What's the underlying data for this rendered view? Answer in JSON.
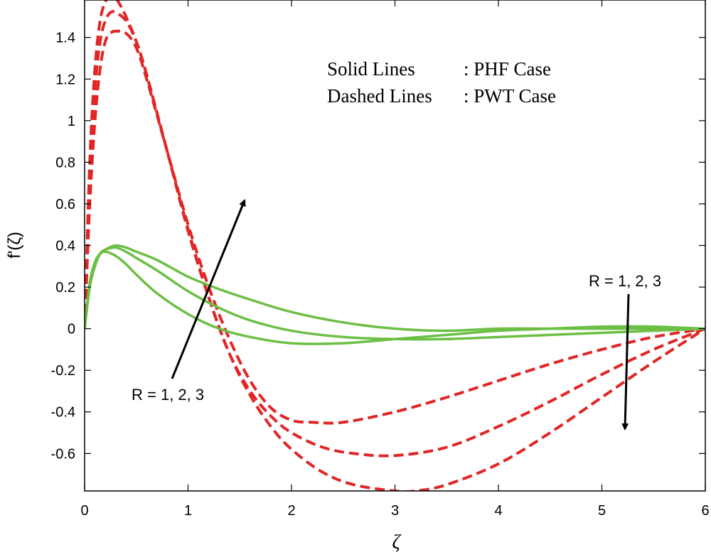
{
  "chart_data": {
    "type": "line",
    "xlabel": "ζ",
    "ylabel": "f'(ζ)",
    "xlim": [
      0,
      6
    ],
    "ylim": [
      -0.78,
      1.58
    ],
    "xticks": [
      "0",
      "1",
      "2",
      "3",
      "4",
      "5",
      "6"
    ],
    "yticks": [
      "-0.6",
      "-0.4",
      "-0.2",
      "0",
      "0.2",
      "0.4",
      "0.6",
      "0.8",
      "1",
      "1.2",
      "1.4"
    ],
    "legend": [
      {
        "style": "solid",
        "label_left": "Solid Lines",
        "label_right": ": PHF Case"
      },
      {
        "style": "dashed",
        "label_left": "Dashed Lines",
        "label_right": ": PWT Case"
      }
    ],
    "annotations": [
      {
        "text": "R = 1, 2, 3",
        "arrow": "up"
      },
      {
        "text": "R = 1, 2, 3",
        "arrow": "down"
      }
    ],
    "colors": {
      "solid": "#6cbf45",
      "dashed": "#e02626",
      "axis": "#000000"
    },
    "series": [
      {
        "style": "solid",
        "group": "PHF",
        "x": [
          0,
          0.05,
          0.1,
          0.15,
          0.2,
          0.3,
          0.4,
          0.5,
          0.7,
          1.0,
          1.3,
          1.6,
          2.0,
          2.5,
          3.0,
          3.5,
          4.0,
          4.5,
          5.0,
          5.5,
          6.0
        ],
        "y": [
          0.0,
          0.2,
          0.3,
          0.36,
          0.38,
          0.4,
          0.39,
          0.37,
          0.33,
          0.25,
          0.19,
          0.14,
          0.08,
          0.03,
          0.0,
          -0.01,
          0.0,
          0.0,
          0.0,
          0.0,
          0.0
        ]
      },
      {
        "style": "solid",
        "group": "PHF",
        "x": [
          0,
          0.05,
          0.1,
          0.15,
          0.2,
          0.3,
          0.4,
          0.5,
          0.7,
          1.0,
          1.3,
          1.6,
          2.0,
          2.5,
          3.0,
          3.5,
          4.0,
          4.5,
          5.0,
          5.5,
          6.0
        ],
        "y": [
          0.0,
          0.21,
          0.31,
          0.36,
          0.38,
          0.39,
          0.37,
          0.34,
          0.28,
          0.18,
          0.1,
          0.04,
          -0.01,
          -0.04,
          -0.05,
          -0.05,
          -0.04,
          -0.03,
          -0.02,
          -0.01,
          0.0
        ]
      },
      {
        "style": "solid",
        "group": "PHF",
        "x": [
          0,
          0.05,
          0.1,
          0.15,
          0.2,
          0.3,
          0.4,
          0.5,
          0.7,
          1.0,
          1.3,
          1.6,
          2.0,
          2.5,
          3.0,
          3.5,
          4.0,
          4.5,
          5.0,
          5.5,
          6.0
        ],
        "y": [
          0.0,
          0.22,
          0.32,
          0.36,
          0.37,
          0.35,
          0.31,
          0.26,
          0.17,
          0.07,
          0.0,
          -0.04,
          -0.07,
          -0.07,
          -0.05,
          -0.03,
          -0.01,
          0.0,
          0.01,
          0.01,
          0.0
        ]
      },
      {
        "style": "dashed",
        "group": "PWT",
        "x": [
          0,
          0.05,
          0.1,
          0.15,
          0.2,
          0.25,
          0.3,
          0.4,
          0.5,
          0.6,
          0.8,
          1.0,
          1.2,
          1.4,
          1.6,
          1.8,
          2.0,
          2.2,
          2.5,
          3.0,
          3.5,
          4.0,
          4.5,
          5.0,
          5.5,
          6.0
        ],
        "y": [
          0.0,
          0.6,
          1.0,
          1.25,
          1.38,
          1.42,
          1.43,
          1.42,
          1.35,
          1.2,
          0.85,
          0.5,
          0.2,
          -0.05,
          -0.25,
          -0.38,
          -0.44,
          -0.45,
          -0.45,
          -0.4,
          -0.33,
          -0.25,
          -0.17,
          -0.1,
          -0.04,
          0.0
        ]
      },
      {
        "style": "dashed",
        "group": "PWT",
        "x": [
          0,
          0.05,
          0.1,
          0.15,
          0.2,
          0.25,
          0.3,
          0.4,
          0.5,
          0.6,
          0.8,
          1.0,
          1.2,
          1.4,
          1.6,
          1.8,
          2.0,
          2.3,
          2.6,
          3.0,
          3.5,
          4.0,
          4.5,
          5.0,
          5.5,
          6.0
        ],
        "y": [
          0.0,
          0.7,
          1.15,
          1.38,
          1.48,
          1.52,
          1.52,
          1.48,
          1.38,
          1.22,
          0.85,
          0.48,
          0.15,
          -0.12,
          -0.3,
          -0.42,
          -0.5,
          -0.57,
          -0.6,
          -0.61,
          -0.57,
          -0.47,
          -0.35,
          -0.22,
          -0.1,
          0.0
        ]
      },
      {
        "style": "dashed",
        "group": "PWT",
        "x": [
          0,
          0.05,
          0.1,
          0.15,
          0.2,
          0.25,
          0.3,
          0.35,
          0.4,
          0.5,
          0.6,
          0.8,
          1.0,
          1.2,
          1.4,
          1.6,
          1.8,
          2.0,
          2.3,
          2.6,
          3.0,
          3.2,
          3.5,
          4.0,
          4.5,
          5.0,
          5.5,
          6.0
        ],
        "y": [
          0.0,
          0.8,
          1.25,
          1.48,
          1.57,
          1.6,
          1.59,
          1.55,
          1.5,
          1.38,
          1.22,
          0.85,
          0.47,
          0.15,
          -0.12,
          -0.32,
          -0.47,
          -0.58,
          -0.69,
          -0.75,
          -0.78,
          -0.78,
          -0.75,
          -0.65,
          -0.5,
          -0.33,
          -0.16,
          0.0
        ]
      }
    ]
  }
}
